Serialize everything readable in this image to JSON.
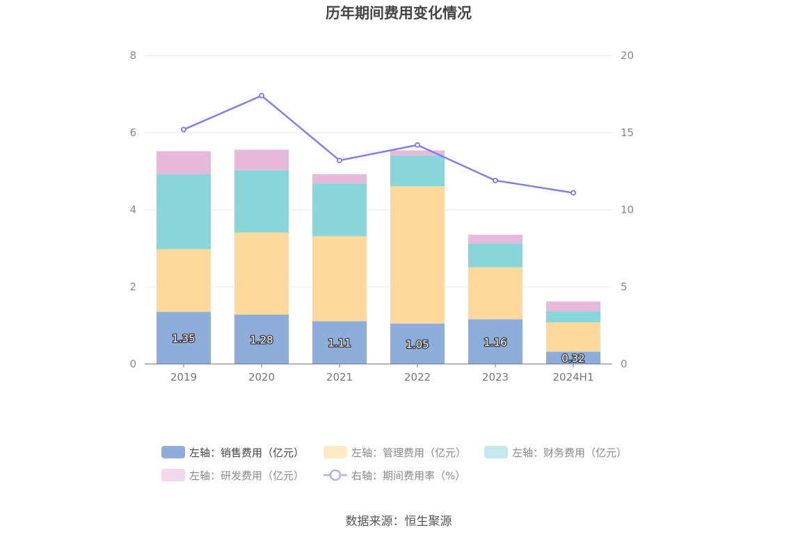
{
  "chart_data": {
    "type": "bar",
    "title": "历年期间费用变化情况",
    "categories": [
      "2019",
      "2020",
      "2021",
      "2022",
      "2023",
      "2024H1"
    ],
    "stacked": true,
    "series": [
      {
        "name": "左轴：销售费用（亿元）",
        "axis": "left",
        "type": "bar",
        "color": "#8eaddb",
        "values": [
          1.35,
          1.28,
          1.11,
          1.05,
          1.16,
          0.32
        ],
        "show_labels": true
      },
      {
        "name": "左轴：管理费用（亿元）",
        "axis": "left",
        "type": "bar",
        "color": "#ffd99b",
        "values": [
          1.63,
          2.13,
          2.21,
          3.56,
          1.35,
          0.76
        ]
      },
      {
        "name": "左轴：财务费用（亿元）",
        "axis": "left",
        "type": "bar",
        "color": "#88d6da",
        "values": [
          1.94,
          1.62,
          1.36,
          0.8,
          0.62,
          0.28
        ]
      },
      {
        "name": "左轴：研发费用（亿元）",
        "axis": "left",
        "type": "bar",
        "color": "#e6b9db",
        "values": [
          0.6,
          0.53,
          0.24,
          0.13,
          0.22,
          0.26
        ]
      },
      {
        "name": "右轴：期间费用率（%）",
        "axis": "right",
        "type": "line",
        "color": "#7b7fef",
        "values": [
          15.2,
          17.4,
          13.2,
          14.2,
          11.9,
          11.1
        ]
      }
    ],
    "y_left": {
      "min": 0,
      "max": 8,
      "ticks": [
        "0",
        "2",
        "4",
        "6",
        "8"
      ]
    },
    "y_right": {
      "min": 0,
      "max": 20,
      "ticks": [
        "0",
        "5",
        "10",
        "15",
        "20"
      ]
    },
    "grid": true,
    "legend_position": "bottom-center"
  },
  "source": "数据来源：恒生聚源"
}
